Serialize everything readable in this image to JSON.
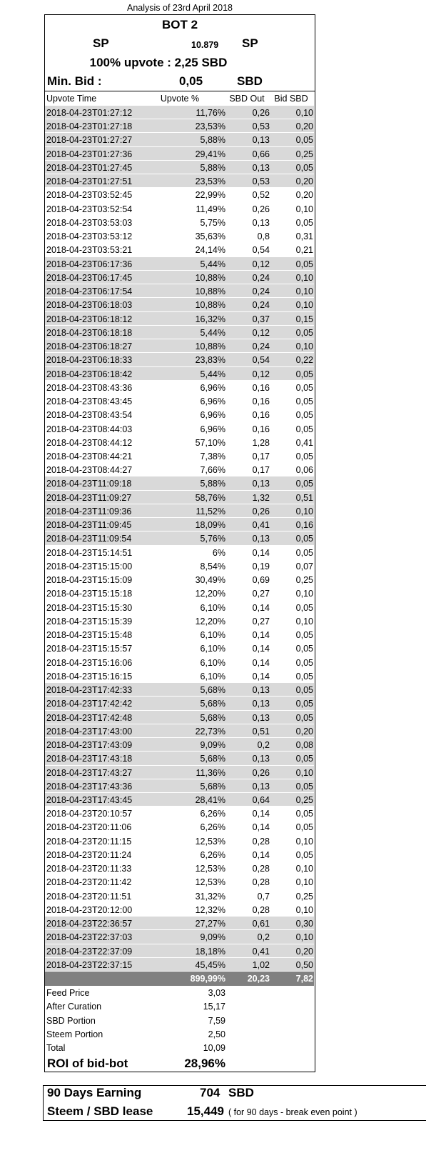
{
  "title": "Analysis of 23rd April 2018",
  "bot": "BOT 2",
  "sp": {
    "label": "SP",
    "value": "10.879",
    "unit": "SP"
  },
  "upvote": "100% upvote : 2,25 SBD",
  "min_bid": {
    "label": "Min. Bid :",
    "value": "0,05",
    "unit": "SBD"
  },
  "table": {
    "columns": [
      "Upvote Time",
      "Upvote %",
      "SBD Out",
      "Bid SBD"
    ],
    "groups": [
      {
        "shaded": true,
        "rows": [
          [
            "2018-04-23T01:27:12",
            "11,76%",
            "0,26",
            "0,10"
          ],
          [
            "2018-04-23T01:27:18",
            "23,53%",
            "0,53",
            "0,20"
          ],
          [
            "2018-04-23T01:27:27",
            "5,88%",
            "0,13",
            "0,05"
          ],
          [
            "2018-04-23T01:27:36",
            "29,41%",
            "0,66",
            "0,25"
          ],
          [
            "2018-04-23T01:27:45",
            "5,88%",
            "0,13",
            "0,05"
          ],
          [
            "2018-04-23T01:27:51",
            "23,53%",
            "0,53",
            "0,20"
          ]
        ]
      },
      {
        "shaded": false,
        "rows": [
          [
            "2018-04-23T03:52:45",
            "22,99%",
            "0,52",
            "0,20"
          ],
          [
            "2018-04-23T03:52:54",
            "11,49%",
            "0,26",
            "0,10"
          ],
          [
            "2018-04-23T03:53:03",
            "5,75%",
            "0,13",
            "0,05"
          ],
          [
            "2018-04-23T03:53:12",
            "35,63%",
            "0,8",
            "0,31"
          ],
          [
            "2018-04-23T03:53:21",
            "24,14%",
            "0,54",
            "0,21"
          ]
        ]
      },
      {
        "shaded": true,
        "rows": [
          [
            "2018-04-23T06:17:36",
            "5,44%",
            "0,12",
            "0,05"
          ],
          [
            "2018-04-23T06:17:45",
            "10,88%",
            "0,24",
            "0,10"
          ],
          [
            "2018-04-23T06:17:54",
            "10,88%",
            "0,24",
            "0,10"
          ],
          [
            "2018-04-23T06:18:03",
            "10,88%",
            "0,24",
            "0,10"
          ],
          [
            "2018-04-23T06:18:12",
            "16,32%",
            "0,37",
            "0,15"
          ],
          [
            "2018-04-23T06:18:18",
            "5,44%",
            "0,12",
            "0,05"
          ],
          [
            "2018-04-23T06:18:27",
            "10,88%",
            "0,24",
            "0,10"
          ],
          [
            "2018-04-23T06:18:33",
            "23,83%",
            "0,54",
            "0,22"
          ],
          [
            "2018-04-23T06:18:42",
            "5,44%",
            "0,12",
            "0,05"
          ]
        ]
      },
      {
        "shaded": false,
        "rows": [
          [
            "2018-04-23T08:43:36",
            "6,96%",
            "0,16",
            "0,05"
          ],
          [
            "2018-04-23T08:43:45",
            "6,96%",
            "0,16",
            "0,05"
          ],
          [
            "2018-04-23T08:43:54",
            "6,96%",
            "0,16",
            "0,05"
          ],
          [
            "2018-04-23T08:44:03",
            "6,96%",
            "0,16",
            "0,05"
          ],
          [
            "2018-04-23T08:44:12",
            "57,10%",
            "1,28",
            "0,41"
          ],
          [
            "2018-04-23T08:44:21",
            "7,38%",
            "0,17",
            "0,05"
          ],
          [
            "2018-04-23T08:44:27",
            "7,66%",
            "0,17",
            "0,06"
          ]
        ]
      },
      {
        "shaded": true,
        "rows": [
          [
            "2018-04-23T11:09:18",
            "5,88%",
            "0,13",
            "0,05"
          ],
          [
            "2018-04-23T11:09:27",
            "58,76%",
            "1,32",
            "0,51"
          ],
          [
            "2018-04-23T11:09:36",
            "11,52%",
            "0,26",
            "0,10"
          ],
          [
            "2018-04-23T11:09:45",
            "18,09%",
            "0,41",
            "0,16"
          ],
          [
            "2018-04-23T11:09:54",
            "5,76%",
            "0,13",
            "0,05"
          ]
        ]
      },
      {
        "shaded": false,
        "rows": [
          [
            "2018-04-23T15:14:51",
            "6%",
            "0,14",
            "0,05"
          ],
          [
            "2018-04-23T15:15:00",
            "8,54%",
            "0,19",
            "0,07"
          ],
          [
            "2018-04-23T15:15:09",
            "30,49%",
            "0,69",
            "0,25"
          ],
          [
            "2018-04-23T15:15:18",
            "12,20%",
            "0,27",
            "0,10"
          ],
          [
            "2018-04-23T15:15:30",
            "6,10%",
            "0,14",
            "0,05"
          ],
          [
            "2018-04-23T15:15:39",
            "12,20%",
            "0,27",
            "0,10"
          ],
          [
            "2018-04-23T15:15:48",
            "6,10%",
            "0,14",
            "0,05"
          ],
          [
            "2018-04-23T15:15:57",
            "6,10%",
            "0,14",
            "0,05"
          ],
          [
            "2018-04-23T15:16:06",
            "6,10%",
            "0,14",
            "0,05"
          ],
          [
            "2018-04-23T15:16:15",
            "6,10%",
            "0,14",
            "0,05"
          ]
        ]
      },
      {
        "shaded": true,
        "rows": [
          [
            "2018-04-23T17:42:33",
            "5,68%",
            "0,13",
            "0,05"
          ],
          [
            "2018-04-23T17:42:42",
            "5,68%",
            "0,13",
            "0,05"
          ],
          [
            "2018-04-23T17:42:48",
            "5,68%",
            "0,13",
            "0,05"
          ],
          [
            "2018-04-23T17:43:00",
            "22,73%",
            "0,51",
            "0,20"
          ],
          [
            "2018-04-23T17:43:09",
            "9,09%",
            "0,2",
            "0,08"
          ],
          [
            "2018-04-23T17:43:18",
            "5,68%",
            "0,13",
            "0,05"
          ],
          [
            "2018-04-23T17:43:27",
            "11,36%",
            "0,26",
            "0,10"
          ],
          [
            "2018-04-23T17:43:36",
            "5,68%",
            "0,13",
            "0,05"
          ],
          [
            "2018-04-23T17:43:45",
            "28,41%",
            "0,64",
            "0,25"
          ]
        ]
      },
      {
        "shaded": false,
        "rows": [
          [
            "2018-04-23T20:10:57",
            "6,26%",
            "0,14",
            "0,05"
          ],
          [
            "2018-04-23T20:11:06",
            "6,26%",
            "0,14",
            "0,05"
          ],
          [
            "2018-04-23T20:11:15",
            "12,53%",
            "0,28",
            "0,10"
          ],
          [
            "2018-04-23T20:11:24",
            "6,26%",
            "0,14",
            "0,05"
          ],
          [
            "2018-04-23T20:11:33",
            "12,53%",
            "0,28",
            "0,10"
          ],
          [
            "2018-04-23T20:11:42",
            "12,53%",
            "0,28",
            "0,10"
          ],
          [
            "2018-04-23T20:11:51",
            "31,32%",
            "0,7",
            "0,25"
          ],
          [
            "2018-04-23T20:12:00",
            "12,32%",
            "0,28",
            "0,10"
          ]
        ]
      },
      {
        "shaded": true,
        "rows": [
          [
            "2018-04-23T22:36:57",
            "27,27%",
            "0,61",
            "0,30"
          ],
          [
            "2018-04-23T22:37:03",
            "9,09%",
            "0,2",
            "0,10"
          ],
          [
            "2018-04-23T22:37:09",
            "18,18%",
            "0,41",
            "0,20"
          ],
          [
            "2018-04-23T22:37:15",
            "45,45%",
            "1,02",
            "0,50"
          ]
        ]
      }
    ],
    "totals": [
      "899,99%",
      "20,23",
      "7,82"
    ]
  },
  "summary": [
    [
      "Feed Price",
      "3,03"
    ],
    [
      "After Curation",
      "15,17"
    ],
    [
      "SBD Portion",
      "7,59"
    ],
    [
      "Steem Portion",
      "2,50"
    ],
    [
      "Total",
      "10,09"
    ]
  ],
  "roi": {
    "label": "ROI of bid-bot",
    "value": "28,96%"
  },
  "footer": {
    "earning": {
      "label": "90 Days Earning",
      "value": "704",
      "unit": "SBD"
    },
    "lease": {
      "label": "Steem / SBD lease",
      "value": "15,449",
      "note": "( for 90 days - break even point )"
    }
  }
}
